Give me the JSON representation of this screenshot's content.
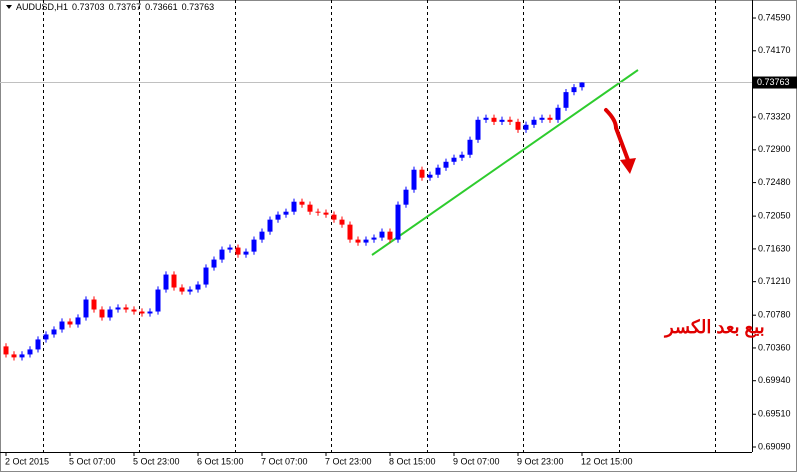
{
  "chart_data": {
    "type": "candlestick",
    "symbol": "AUDUSD,H1",
    "header_values": [
      0.73703,
      0.73767,
      0.73661,
      0.73763
    ],
    "annotation": "بيع بعد الكسر",
    "categories": [
      "2 Oct 2015",
      null,
      null,
      null,
      null,
      null,
      null,
      null,
      "5 Oct 07:00",
      null,
      null,
      null,
      null,
      null,
      null,
      null,
      "5 Oct 23:00",
      null,
      null,
      null,
      null,
      null,
      null,
      null,
      "6 Oct 15:00",
      null,
      null,
      null,
      null,
      null,
      null,
      null,
      "7 Oct 07:00",
      null,
      null,
      null,
      null,
      null,
      null,
      null,
      "7 Oct 23:00",
      null,
      null,
      null,
      null,
      null,
      null,
      null,
      "8 Oct 15:00",
      null,
      null,
      null,
      null,
      null,
      null,
      null,
      "9 Oct 07:00",
      null,
      null,
      null,
      null,
      null,
      null,
      null,
      "9 Oct 23:00",
      null,
      null,
      null,
      null,
      null,
      null,
      null,
      "12 Oct 15:00"
    ],
    "open": [
      0.7038,
      0.70277,
      0.70239,
      0.70277,
      0.70341,
      0.70469,
      0.70533,
      0.70597,
      0.70699,
      0.70661,
      0.70751,
      0.70981,
      0.70853,
      0.70751,
      0.70853,
      0.70879,
      0.70853,
      0.70827,
      0.70802,
      0.70827,
      0.71109,
      0.71301,
      0.71135,
      0.71083,
      0.71109,
      0.71173,
      0.71391,
      0.71493,
      0.71621,
      0.71647,
      0.71557,
      0.71595,
      0.71749,
      0.71851,
      0.72005,
      0.72069,
      0.72107,
      0.72235,
      0.72197,
      0.72107,
      0.72095,
      0.72069,
      0.72005,
      0.71941,
      0.71749,
      0.71711,
      0.71749,
      0.71775,
      0.71851,
      0.71749,
      0.72197,
      0.72389,
      0.72645,
      0.72543,
      0.72581,
      0.72671,
      0.72747,
      0.72799,
      0.72837,
      0.73029,
      0.73285,
      0.73311,
      0.73259,
      0.73285,
      0.73259,
      0.73157,
      0.73221,
      0.73285,
      0.73311,
      0.73285,
      0.73439,
      0.7364,
      0.73703
    ],
    "high": [
      0.7042,
      0.70317,
      0.70317,
      0.70381,
      0.70509,
      0.70573,
      0.70637,
      0.70739,
      0.70739,
      0.70791,
      0.71021,
      0.71021,
      0.70893,
      0.70893,
      0.70919,
      0.70919,
      0.70893,
      0.70867,
      0.70867,
      0.71149,
      0.71341,
      0.71341,
      0.71175,
      0.71149,
      0.71213,
      0.71431,
      0.71533,
      0.71661,
      0.71687,
      0.71687,
      0.71635,
      0.71789,
      0.71891,
      0.72045,
      0.72109,
      0.72147,
      0.72275,
      0.72275,
      0.72237,
      0.72147,
      0.72135,
      0.72109,
      0.72045,
      0.71981,
      0.71789,
      0.71789,
      0.71815,
      0.71891,
      0.71891,
      0.72237,
      0.72429,
      0.72685,
      0.72685,
      0.72621,
      0.72711,
      0.72787,
      0.72839,
      0.72877,
      0.73069,
      0.73325,
      0.73351,
      0.73351,
      0.73325,
      0.73325,
      0.73299,
      0.73261,
      0.73325,
      0.73351,
      0.73351,
      0.73479,
      0.7368,
      0.73743,
      0.73767
    ],
    "low": [
      0.70237,
      0.70199,
      0.70199,
      0.70237,
      0.70301,
      0.70429,
      0.70493,
      0.70557,
      0.70621,
      0.70621,
      0.70711,
      0.70813,
      0.70711,
      0.70711,
      0.70813,
      0.70813,
      0.70787,
      0.70762,
      0.70762,
      0.70787,
      0.71069,
      0.71095,
      0.71043,
      0.71043,
      0.71069,
      0.71133,
      0.71351,
      0.71453,
      0.71581,
      0.71517,
      0.71517,
      0.71555,
      0.71709,
      0.71811,
      0.71965,
      0.72029,
      0.72067,
      0.72157,
      0.72067,
      0.72055,
      0.72029,
      0.71965,
      0.71901,
      0.71709,
      0.71671,
      0.71671,
      0.71709,
      0.71735,
      0.71709,
      0.71709,
      0.72157,
      0.72349,
      0.72503,
      0.72503,
      0.72541,
      0.72631,
      0.72707,
      0.72759,
      0.72797,
      0.72989,
      0.73245,
      0.73219,
      0.73219,
      0.73219,
      0.73117,
      0.73117,
      0.73181,
      0.73245,
      0.73245,
      0.73245,
      0.73399,
      0.736,
      0.73661
    ],
    "close": [
      0.70277,
      0.70239,
      0.70277,
      0.70341,
      0.70469,
      0.70533,
      0.70597,
      0.70699,
      0.70661,
      0.70751,
      0.70981,
      0.70853,
      0.70751,
      0.70853,
      0.70879,
      0.70853,
      0.70827,
      0.70802,
      0.70827,
      0.71109,
      0.71301,
      0.71135,
      0.71083,
      0.71109,
      0.71173,
      0.71391,
      0.71493,
      0.71621,
      0.71647,
      0.71557,
      0.71595,
      0.71749,
      0.71851,
      0.72005,
      0.72069,
      0.72107,
      0.72235,
      0.72197,
      0.72107,
      0.72095,
      0.72069,
      0.72005,
      0.71941,
      0.71749,
      0.71711,
      0.71749,
      0.71775,
      0.71851,
      0.71749,
      0.72197,
      0.72389,
      0.72645,
      0.72543,
      0.72581,
      0.72671,
      0.72747,
      0.72799,
      0.72837,
      0.73029,
      0.73285,
      0.73311,
      0.73259,
      0.73285,
      0.73259,
      0.73157,
      0.73221,
      0.73285,
      0.73311,
      0.73285,
      0.73439,
      0.7364,
      0.73703,
      0.73763
    ],
    "up_color": "#0000ff",
    "down_color": "#ff0000",
    "price_line": {
      "value": 0.73763,
      "label": "0.73763"
    },
    "ylim": [
      0.69026,
      0.74821
    ],
    "yticks": [
      {
        "value": 0.7459,
        "label": "0.74590"
      },
      {
        "value": 0.7417,
        "label": "0.74170"
      },
      {
        "value": 0.7332,
        "label": "0.73320"
      },
      {
        "value": 0.729,
        "label": "0.72900"
      },
      {
        "value": 0.7248,
        "label": "0.72480"
      },
      {
        "value": 0.7205,
        "label": "0.72050"
      },
      {
        "value": 0.7163,
        "label": "0.71630"
      },
      {
        "value": 0.7121,
        "label": "0.71210"
      },
      {
        "value": 0.7078,
        "label": "0.70780"
      },
      {
        "value": 0.7036,
        "label": "0.70360"
      },
      {
        "value": 0.6994,
        "label": "0.69940"
      },
      {
        "value": 0.6951,
        "label": "0.69510"
      },
      {
        "value": 0.6909,
        "label": "0.69090"
      }
    ]
  }
}
